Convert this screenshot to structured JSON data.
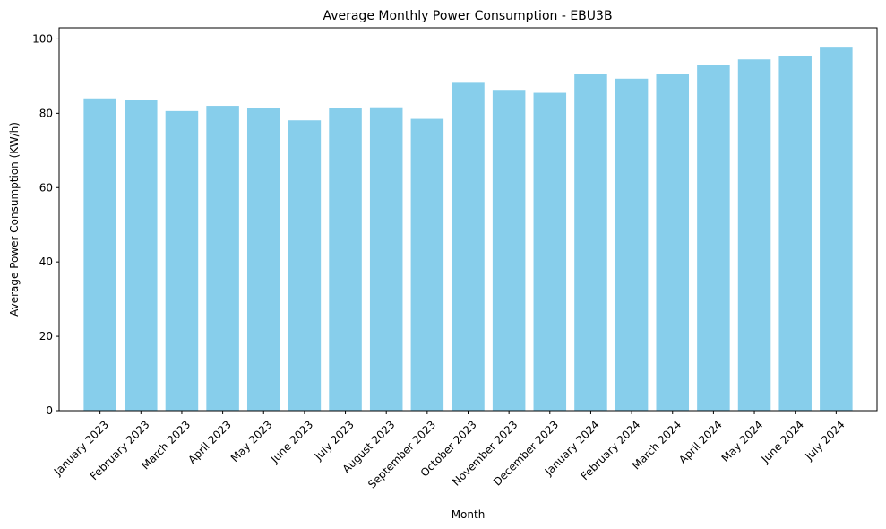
{
  "chart_data": {
    "type": "bar",
    "title": "Average Monthly Power Consumption - EBU3B",
    "xlabel": "Month",
    "ylabel": "Average Power Consumption (KW/h)",
    "ylim": [
      0,
      103
    ],
    "yticks": [
      0,
      20,
      40,
      60,
      80,
      100
    ],
    "grid": false,
    "bar_color": "#87CEEB",
    "categories": [
      "January 2023",
      "February 2023",
      "March 2023",
      "April 2023",
      "May 2023",
      "June 2023",
      "July 2023",
      "August 2023",
      "September 2023",
      "October 2023",
      "November 2023",
      "December 2023",
      "January 2024",
      "February 2024",
      "March 2024",
      "April 2024",
      "May 2024",
      "June 2024",
      "July 2024"
    ],
    "values": [
      84.0,
      83.7,
      80.6,
      82.0,
      81.3,
      78.1,
      81.3,
      81.6,
      78.5,
      88.2,
      86.3,
      85.5,
      90.5,
      89.3,
      90.5,
      93.1,
      94.5,
      95.3,
      97.9
    ]
  }
}
